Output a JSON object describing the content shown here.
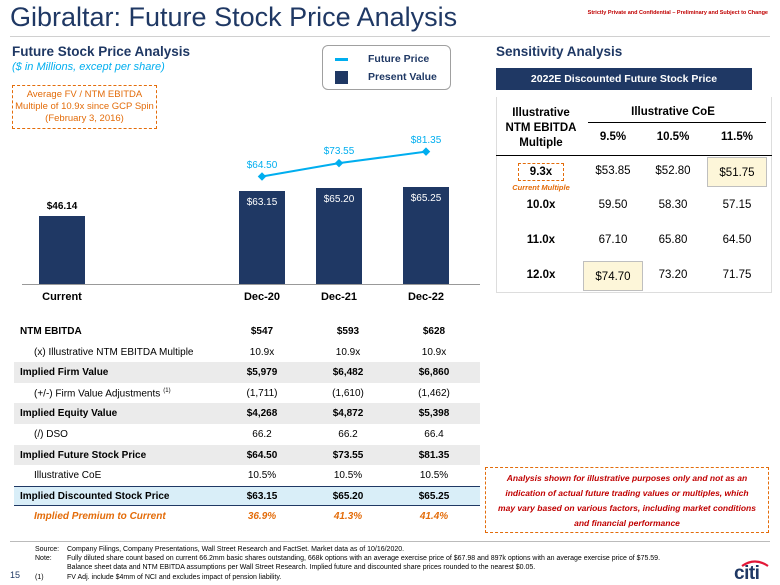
{
  "header": {
    "title": "Gibraltar: Future Stock Price Analysis",
    "confidential": "Strictly Private and Confidential – Preliminary and Subject to Change",
    "accent": "#1f3864",
    "highlight": "#00aeef"
  },
  "left": {
    "heading": "Future Stock Price Analysis",
    "subheading": "($ in Millions, except per share)",
    "callout": {
      "line1": "Average FV / NTM EBITDA",
      "line2": "Multiple of 10.9x since GCP Spin",
      "line3": "(February 3, 2016)"
    }
  },
  "legend": {
    "future_price": "Future Price",
    "present_value": "Present Value"
  },
  "chart_data": {
    "type": "bar",
    "categories": [
      "Current",
      "Dec-20",
      "Dec-21",
      "Dec-22"
    ],
    "series": [
      {
        "name": "Present Value",
        "values": [
          46.14,
          63.15,
          65.2,
          65.25
        ],
        "labels": [
          "$46.14",
          "$63.15",
          "$65.20",
          "$65.25"
        ]
      },
      {
        "name": "Future Price",
        "values": [
          null,
          64.5,
          73.55,
          81.35
        ],
        "labels": [
          "",
          "$64.50",
          "$73.55",
          "$81.35"
        ]
      }
    ],
    "ylim": [
      0,
      100
    ]
  },
  "table": {
    "rows": [
      {
        "label": "NTM EBITDA",
        "values": [
          "$547",
          "$593",
          "$628"
        ],
        "bold": true,
        "shade": false
      },
      {
        "label": "(x) Illustrative NTM EBITDA Multiple",
        "values": [
          "10.9x",
          "10.9x",
          "10.9x"
        ],
        "bold": false,
        "shade": false
      },
      {
        "label": "Implied Firm Value",
        "values": [
          "$5,979",
          "$6,482",
          "$6,860"
        ],
        "bold": true,
        "shade": true
      },
      {
        "label": "(+/-) Firm Value Adjustments",
        "sup": "(1)",
        "values": [
          "(1,711)",
          "(1,610)",
          "(1,462)"
        ],
        "bold": false,
        "shade": false
      },
      {
        "label": "Implied Equity Value",
        "values": [
          "$4,268",
          "$4,872",
          "$5,398"
        ],
        "bold": true,
        "shade": true
      },
      {
        "label": "(/) DSO",
        "values": [
          "66.2",
          "66.2",
          "66.4"
        ],
        "bold": false,
        "shade": false
      },
      {
        "label": "Implied Future Stock Price",
        "values": [
          "$64.50",
          "$73.55",
          "$81.35"
        ],
        "bold": true,
        "shade": true
      },
      {
        "label": "Illustrative CoE",
        "values": [
          "10.5%",
          "10.5%",
          "10.5%"
        ],
        "bold": false,
        "shade": false
      },
      {
        "label": "Implied Discounted Stock Price",
        "values": [
          "$63.15",
          "$65.20",
          "$65.25"
        ],
        "bold": true,
        "shade": false
      },
      {
        "label": "Implied Premium to Current",
        "values": [
          "36.9%",
          "41.3%",
          "41.4%"
        ],
        "bold": true,
        "shade": false
      }
    ]
  },
  "sensitivity": {
    "heading": "Sensitivity Analysis",
    "banner": "2022E Discounted Future Stock Price",
    "row_header": [
      "Illustrative",
      "NTM EBITDA",
      "Multiple"
    ],
    "col_header": "Illustrative CoE",
    "cols": [
      "9.5%",
      "10.5%",
      "11.5%"
    ],
    "rows": [
      {
        "label": "9.3x",
        "sub": "Current Multiple",
        "values": [
          "$53.85",
          "$52.80",
          "$51.75"
        ]
      },
      {
        "label": "10.0x",
        "values": [
          "59.50",
          "58.30",
          "57.15"
        ]
      },
      {
        "label": "11.0x",
        "values": [
          "67.10",
          "65.80",
          "64.50"
        ]
      },
      {
        "label": "12.0x",
        "values": [
          "$74.70",
          "73.20",
          "71.75"
        ]
      }
    ]
  },
  "disclaimer": {
    "line1": "Analysis shown for illustrative purposes only and not as an",
    "line2": "indication of actual future trading values or multiples, which",
    "line3": "may vary based on various factors, including market conditions",
    "line4": "and financial performance"
  },
  "footer": {
    "source_label": "Source:",
    "source": "Company Filings, Company Presentations, Wall Street Research and FactSet. Market data as of 10/16/2020.",
    "note_label": "Note:",
    "note1": "Fully diluted share count based on current 66.2mm basic shares outstanding, 668k options with an average exercise price of $67.98 and 897k options with an average exercise price of $75.59.",
    "note2": "Balance sheet data and NTM EBITDA assumptions per Wall Street Research. Implied future and discounted share prices rounded to the nearest $0.05.",
    "fn_label": "(1)",
    "fn1": "FV Adj. include $4mm of NCI and excludes impact of pension liability.",
    "page": "15",
    "logo": "citi"
  }
}
